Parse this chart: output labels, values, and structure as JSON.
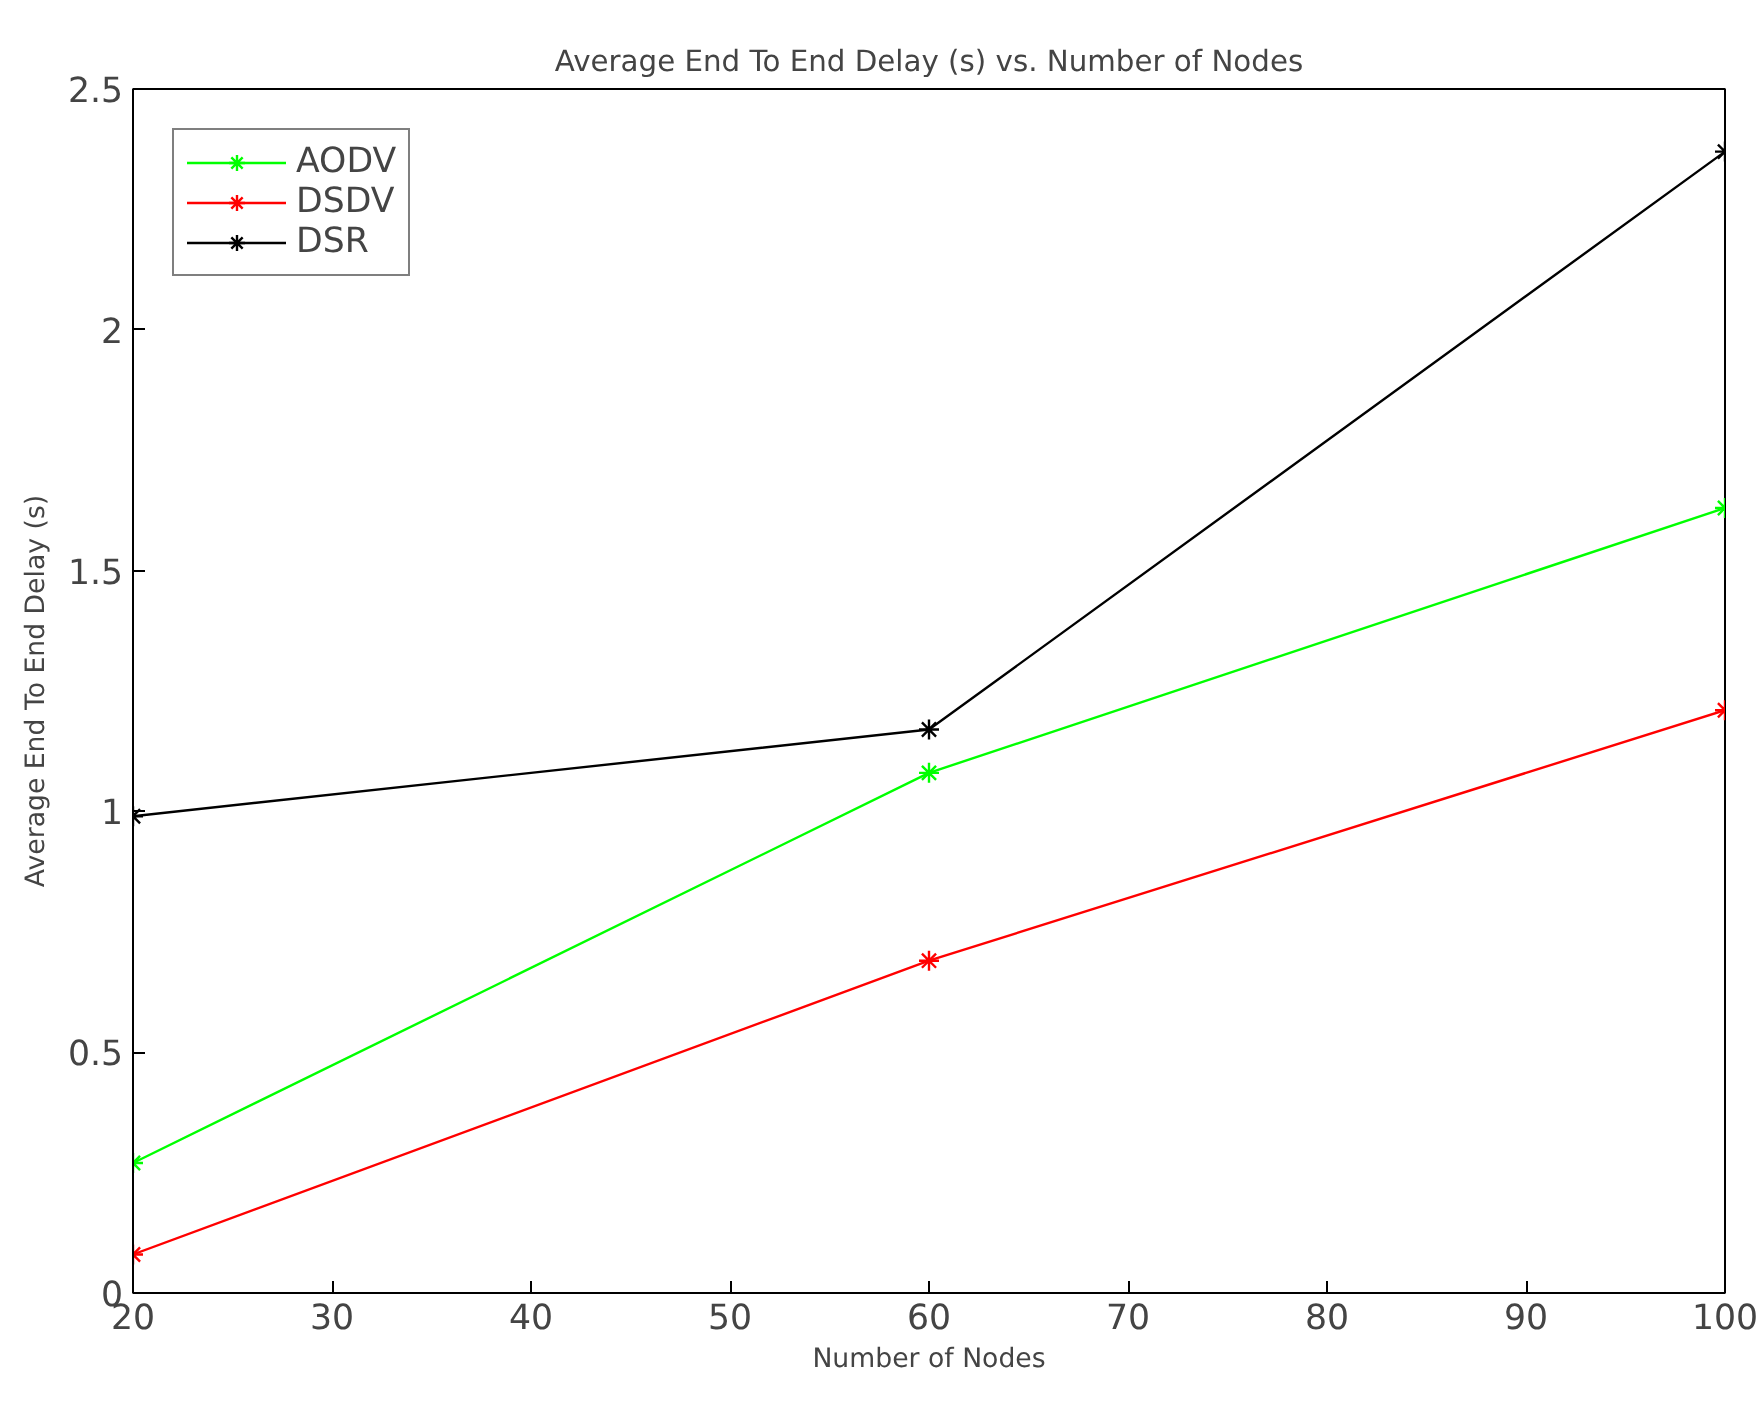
{
  "chart_data": {
    "type": "line",
    "title": "Average End To End Delay (s) vs. Number of Nodes",
    "xlabel": "Number of Nodes",
    "ylabel": "Average End To End Delay (s)",
    "x": [
      20,
      60,
      100
    ],
    "series": [
      {
        "name": "AODV",
        "color": "#00ff00",
        "values": [
          0.27,
          1.08,
          1.63
        ]
      },
      {
        "name": "DSDV",
        "color": "#ff0000",
        "values": [
          0.08,
          0.69,
          1.21
        ]
      },
      {
        "name": "DSR",
        "color": "#000000",
        "values": [
          0.99,
          1.17,
          2.37
        ]
      }
    ],
    "xlim": [
      20,
      100
    ],
    "xticks": [
      20,
      30,
      40,
      50,
      60,
      70,
      80,
      90,
      100
    ],
    "ylim": [
      0,
      2.5
    ],
    "yticks": [
      0,
      0.5,
      1,
      1.5,
      2,
      2.5
    ],
    "grid": false,
    "legend": "top left",
    "marker": "cross",
    "line_style": "solid"
  }
}
